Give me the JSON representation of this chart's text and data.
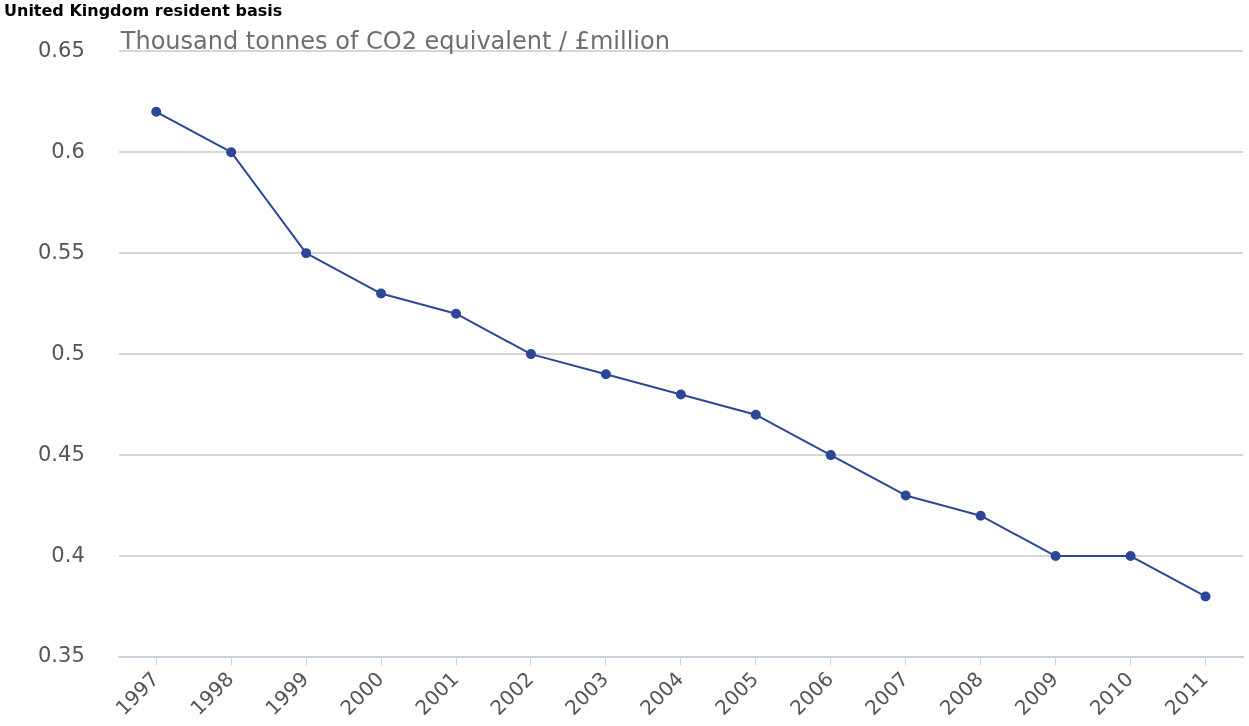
{
  "chart_data": {
    "type": "line",
    "title": "United Kingdom resident basis",
    "ylabel": "Thousand tonnes of CO2 equivalent / £million",
    "categories": [
      "1997",
      "1998",
      "1999",
      "2000",
      "2001",
      "2002",
      "2003",
      "2004",
      "2005",
      "2006",
      "2007",
      "2008",
      "2009",
      "2010",
      "2011"
    ],
    "series": [
      {
        "color": "#2b4796",
        "values": [
          0.62,
          0.6,
          0.55,
          0.53,
          0.52,
          0.5,
          0.49,
          0.48,
          0.47,
          0.45,
          0.43,
          0.42,
          0.4,
          0.4,
          0.38
        ]
      }
    ],
    "ylim": [
      0.35,
      0.65
    ],
    "yticks": [
      0.35,
      0.4,
      0.45,
      0.5,
      0.55,
      0.6,
      0.65
    ],
    "grid": "y",
    "legend": false,
    "marker": "circle",
    "line_style": "solid"
  }
}
